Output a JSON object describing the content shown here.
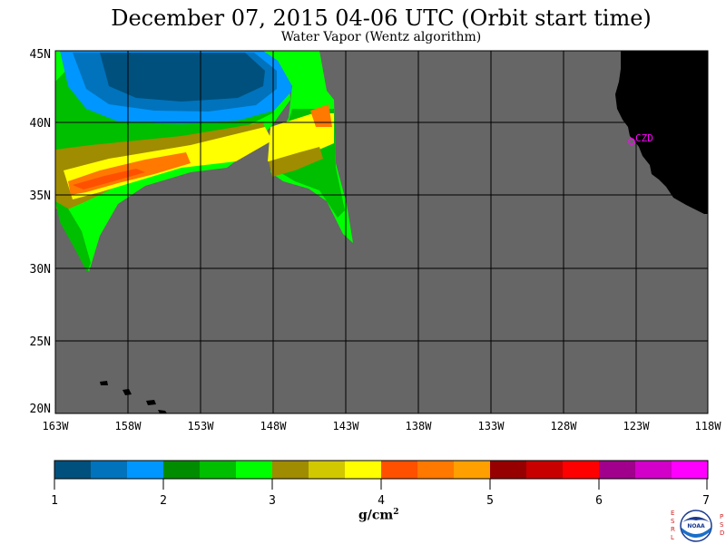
{
  "title": "December 07, 2015  04-06 UTC  (Orbit start time)",
  "subtitle": "Water Vapor (Wentz algorithm)",
  "map": {
    "lat_labels": [
      "45N",
      "40N",
      "35N",
      "30N",
      "25N",
      "20N"
    ],
    "lon_labels": [
      "163W",
      "158W",
      "153W",
      "148W",
      "143W",
      "138W",
      "133W",
      "128W",
      "123W",
      "118W"
    ],
    "station_label": "CZD"
  },
  "colorbar": {
    "tick_labels": [
      "1",
      "2",
      "3",
      "4",
      "5",
      "6",
      "7"
    ],
    "unit_label": "g/cm",
    "unit_sup": "2",
    "colors": [
      "#00507d",
      "#0073bc",
      "#0096ff",
      "#008c00",
      "#00be00",
      "#00ff00",
      "#a08c00",
      "#d2c800",
      "#ffff00",
      "#ff5000",
      "#ff7800",
      "#ffa000",
      "#960000",
      "#c80000",
      "#ff0000",
      "#a0008c",
      "#d200c8",
      "#ff00ff"
    ]
  },
  "logo": {
    "left_letters": "ESRL",
    "right_letters": "PSD",
    "center_text": "NOAA"
  }
}
